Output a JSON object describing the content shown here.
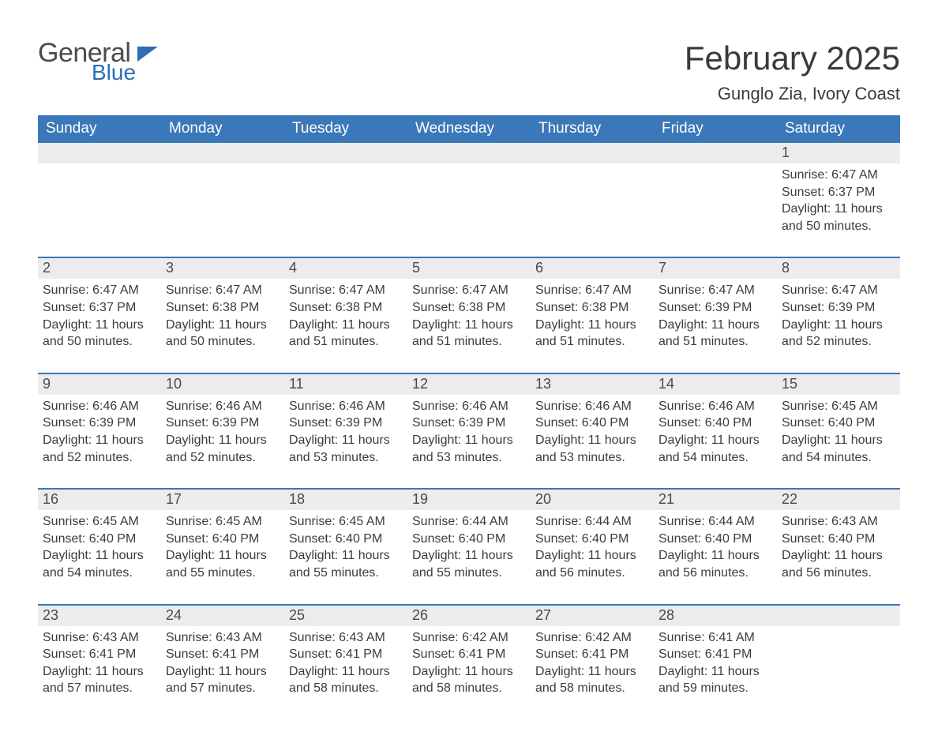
{
  "logo": {
    "word1": "General",
    "word2": "Blue"
  },
  "title": "February 2025",
  "location": "Gunglo Zia, Ivory Coast",
  "colors": {
    "header_bg": "#3a78b9",
    "header_text": "#ffffff",
    "daynum_bg": "#ececec",
    "row_border": "#3a78b9",
    "text": "#3c3c3c",
    "logo_gray": "#4b4b4b",
    "logo_blue": "#2d6eb5",
    "page_bg": "#ffffff"
  },
  "layout": {
    "columns": 7,
    "rows": 5,
    "first_day_column": 6
  },
  "typography": {
    "title_fontsize": 42,
    "location_fontsize": 22,
    "weekday_fontsize": 19,
    "daynum_fontsize": 18,
    "body_fontsize": 16
  },
  "weekdays": [
    "Sunday",
    "Monday",
    "Tuesday",
    "Wednesday",
    "Thursday",
    "Friday",
    "Saturday"
  ],
  "days": [
    {
      "n": "1",
      "sunrise": "6:47 AM",
      "sunset": "6:37 PM",
      "daylight": "11 hours and 50 minutes."
    },
    {
      "n": "2",
      "sunrise": "6:47 AM",
      "sunset": "6:37 PM",
      "daylight": "11 hours and 50 minutes."
    },
    {
      "n": "3",
      "sunrise": "6:47 AM",
      "sunset": "6:38 PM",
      "daylight": "11 hours and 50 minutes."
    },
    {
      "n": "4",
      "sunrise": "6:47 AM",
      "sunset": "6:38 PM",
      "daylight": "11 hours and 51 minutes."
    },
    {
      "n": "5",
      "sunrise": "6:47 AM",
      "sunset": "6:38 PM",
      "daylight": "11 hours and 51 minutes."
    },
    {
      "n": "6",
      "sunrise": "6:47 AM",
      "sunset": "6:38 PM",
      "daylight": "11 hours and 51 minutes."
    },
    {
      "n": "7",
      "sunrise": "6:47 AM",
      "sunset": "6:39 PM",
      "daylight": "11 hours and 51 minutes."
    },
    {
      "n": "8",
      "sunrise": "6:47 AM",
      "sunset": "6:39 PM",
      "daylight": "11 hours and 52 minutes."
    },
    {
      "n": "9",
      "sunrise": "6:46 AM",
      "sunset": "6:39 PM",
      "daylight": "11 hours and 52 minutes."
    },
    {
      "n": "10",
      "sunrise": "6:46 AM",
      "sunset": "6:39 PM",
      "daylight": "11 hours and 52 minutes."
    },
    {
      "n": "11",
      "sunrise": "6:46 AM",
      "sunset": "6:39 PM",
      "daylight": "11 hours and 53 minutes."
    },
    {
      "n": "12",
      "sunrise": "6:46 AM",
      "sunset": "6:39 PM",
      "daylight": "11 hours and 53 minutes."
    },
    {
      "n": "13",
      "sunrise": "6:46 AM",
      "sunset": "6:40 PM",
      "daylight": "11 hours and 53 minutes."
    },
    {
      "n": "14",
      "sunrise": "6:46 AM",
      "sunset": "6:40 PM",
      "daylight": "11 hours and 54 minutes."
    },
    {
      "n": "15",
      "sunrise": "6:45 AM",
      "sunset": "6:40 PM",
      "daylight": "11 hours and 54 minutes."
    },
    {
      "n": "16",
      "sunrise": "6:45 AM",
      "sunset": "6:40 PM",
      "daylight": "11 hours and 54 minutes."
    },
    {
      "n": "17",
      "sunrise": "6:45 AM",
      "sunset": "6:40 PM",
      "daylight": "11 hours and 55 minutes."
    },
    {
      "n": "18",
      "sunrise": "6:45 AM",
      "sunset": "6:40 PM",
      "daylight": "11 hours and 55 minutes."
    },
    {
      "n": "19",
      "sunrise": "6:44 AM",
      "sunset": "6:40 PM",
      "daylight": "11 hours and 55 minutes."
    },
    {
      "n": "20",
      "sunrise": "6:44 AM",
      "sunset": "6:40 PM",
      "daylight": "11 hours and 56 minutes."
    },
    {
      "n": "21",
      "sunrise": "6:44 AM",
      "sunset": "6:40 PM",
      "daylight": "11 hours and 56 minutes."
    },
    {
      "n": "22",
      "sunrise": "6:43 AM",
      "sunset": "6:40 PM",
      "daylight": "11 hours and 56 minutes."
    },
    {
      "n": "23",
      "sunrise": "6:43 AM",
      "sunset": "6:41 PM",
      "daylight": "11 hours and 57 minutes."
    },
    {
      "n": "24",
      "sunrise": "6:43 AM",
      "sunset": "6:41 PM",
      "daylight": "11 hours and 57 minutes."
    },
    {
      "n": "25",
      "sunrise": "6:43 AM",
      "sunset": "6:41 PM",
      "daylight": "11 hours and 58 minutes."
    },
    {
      "n": "26",
      "sunrise": "6:42 AM",
      "sunset": "6:41 PM",
      "daylight": "11 hours and 58 minutes."
    },
    {
      "n": "27",
      "sunrise": "6:42 AM",
      "sunset": "6:41 PM",
      "daylight": "11 hours and 58 minutes."
    },
    {
      "n": "28",
      "sunrise": "6:41 AM",
      "sunset": "6:41 PM",
      "daylight": "11 hours and 59 minutes."
    }
  ],
  "labels": {
    "sunrise": "Sunrise: ",
    "sunset": "Sunset: ",
    "daylight": "Daylight: "
  }
}
